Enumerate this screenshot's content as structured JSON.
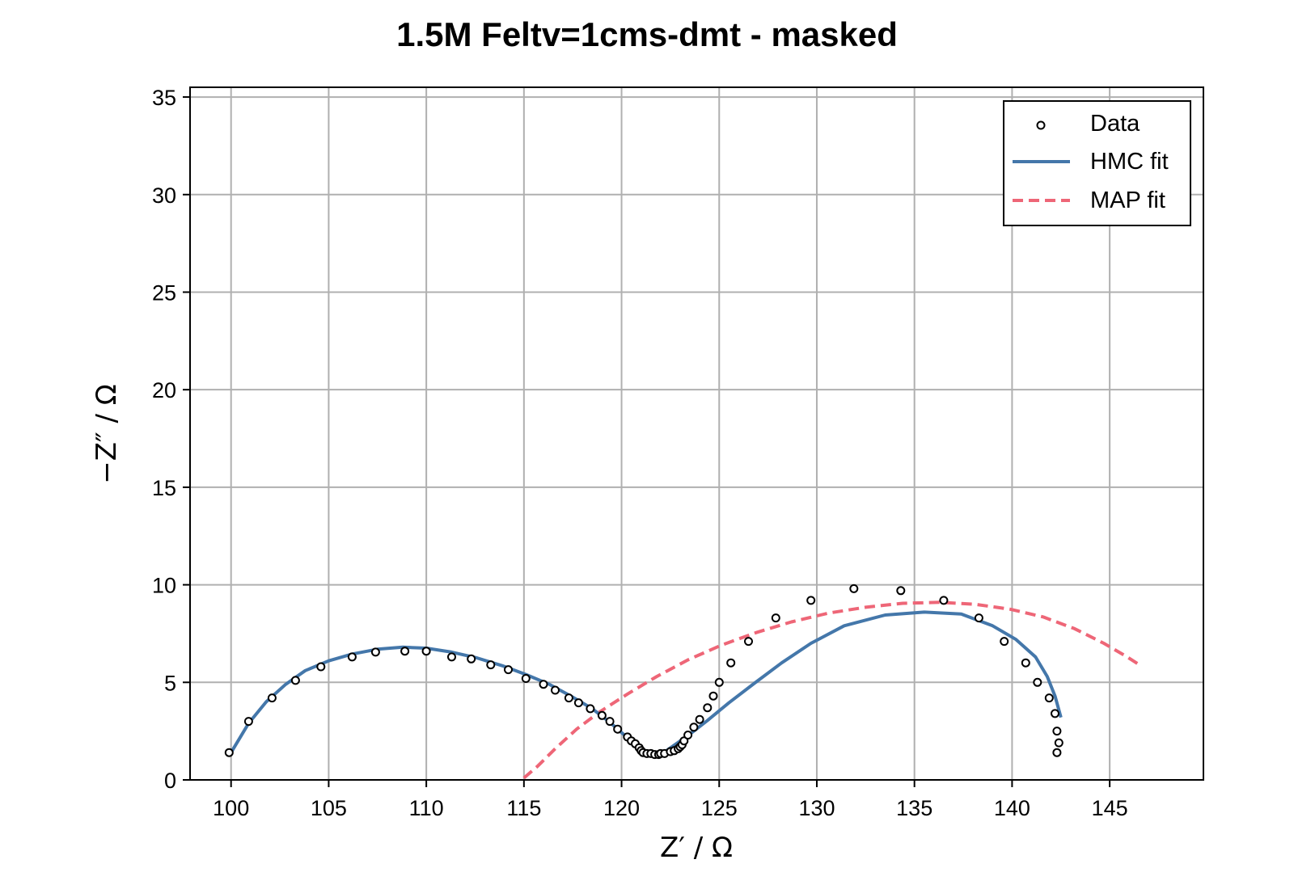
{
  "chart_data": {
    "type": "scatter",
    "title": "1.5M Feltv=1cms-dmt - masked",
    "xlabel": "Z′ / Ω",
    "ylabel": "−Z″ / Ω",
    "xlim": [
      97.9,
      149.8
    ],
    "ylim": [
      0,
      35.5
    ],
    "xticks": [
      100,
      105,
      110,
      115,
      120,
      125,
      130,
      135,
      140,
      145
    ],
    "yticks": [
      0,
      5,
      10,
      15,
      20,
      25,
      30,
      35
    ],
    "grid": true,
    "legend_position": "top-right",
    "series": [
      {
        "name": "Data",
        "kind": "scatter",
        "color": "#000000",
        "x": [
          99.9,
          100.9,
          102.1,
          103.3,
          104.6,
          106.2,
          107.4,
          108.9,
          110.0,
          111.3,
          112.3,
          113.3,
          114.2,
          115.1,
          116.0,
          116.6,
          117.3,
          117.8,
          118.4,
          119.0,
          119.4,
          119.8,
          120.3,
          120.5,
          120.7,
          120.9,
          121.0,
          121.1,
          121.3,
          121.5,
          121.7,
          121.9,
          122.0,
          122.2,
          122.5,
          122.7,
          122.9,
          123.0,
          123.1,
          123.2,
          123.4,
          123.7,
          124.0,
          124.4,
          124.7,
          125.0,
          125.6,
          126.5,
          127.9,
          129.7,
          131.9,
          134.3,
          136.5,
          138.3,
          139.6,
          140.7,
          141.3,
          141.9,
          142.2,
          142.3,
          142.4,
          142.3
        ],
        "y": [
          1.4,
          3.0,
          4.2,
          5.1,
          5.8,
          6.3,
          6.55,
          6.6,
          6.6,
          6.3,
          6.2,
          5.9,
          5.65,
          5.2,
          4.9,
          4.6,
          4.2,
          3.95,
          3.65,
          3.3,
          3.0,
          2.6,
          2.2,
          2.0,
          1.85,
          1.65,
          1.5,
          1.4,
          1.35,
          1.35,
          1.3,
          1.3,
          1.35,
          1.35,
          1.45,
          1.5,
          1.6,
          1.7,
          1.8,
          2.0,
          2.3,
          2.7,
          3.1,
          3.7,
          4.3,
          5.0,
          6.0,
          7.1,
          8.3,
          9.2,
          9.8,
          9.7,
          9.2,
          8.3,
          7.1,
          6.0,
          5.0,
          4.2,
          3.4,
          2.5,
          1.9,
          1.4
        ]
      },
      {
        "name": "HMC fit",
        "kind": "line",
        "color": "#4477AA",
        "x": [
          100.0,
          100.9,
          101.8,
          102.8,
          103.8,
          105.0,
          106.2,
          107.5,
          108.8,
          110.0,
          111.3,
          112.6,
          113.9,
          115.1,
          116.3,
          117.4,
          118.5,
          119.4,
          120.2,
          120.8,
          121.3,
          121.6,
          121.9,
          122.3,
          122.8,
          123.5,
          124.4,
          125.5,
          126.8,
          128.2,
          129.7,
          131.4,
          133.5,
          135.5,
          137.4,
          139.0,
          140.2,
          141.2,
          141.8,
          142.2,
          142.5
        ],
        "y": [
          1.4,
          2.9,
          4.0,
          4.9,
          5.6,
          6.1,
          6.45,
          6.7,
          6.8,
          6.75,
          6.55,
          6.25,
          5.85,
          5.4,
          4.9,
          4.3,
          3.65,
          2.95,
          2.25,
          1.75,
          1.45,
          1.35,
          1.35,
          1.5,
          1.85,
          2.35,
          3.05,
          3.95,
          4.95,
          6.0,
          7.0,
          7.9,
          8.45,
          8.6,
          8.5,
          7.9,
          7.2,
          6.3,
          5.3,
          4.3,
          3.2
        ]
      },
      {
        "name": "MAP fit",
        "kind": "line",
        "dashed": true,
        "color": "#EE6677",
        "x": [
          115.0,
          115.7,
          116.6,
          117.7,
          118.9,
          120.3,
          121.8,
          123.4,
          125.1,
          126.9,
          128.7,
          130.6,
          132.5,
          134.4,
          136.3,
          138.1,
          139.9,
          141.6,
          143.2,
          144.7,
          145.9,
          146.6
        ],
        "y": [
          0.1,
          0.7,
          1.6,
          2.6,
          3.5,
          4.4,
          5.3,
          6.15,
          6.9,
          7.55,
          8.1,
          8.55,
          8.85,
          9.05,
          9.1,
          9.0,
          8.75,
          8.35,
          7.75,
          7.0,
          6.3,
          5.85
        ]
      }
    ]
  }
}
